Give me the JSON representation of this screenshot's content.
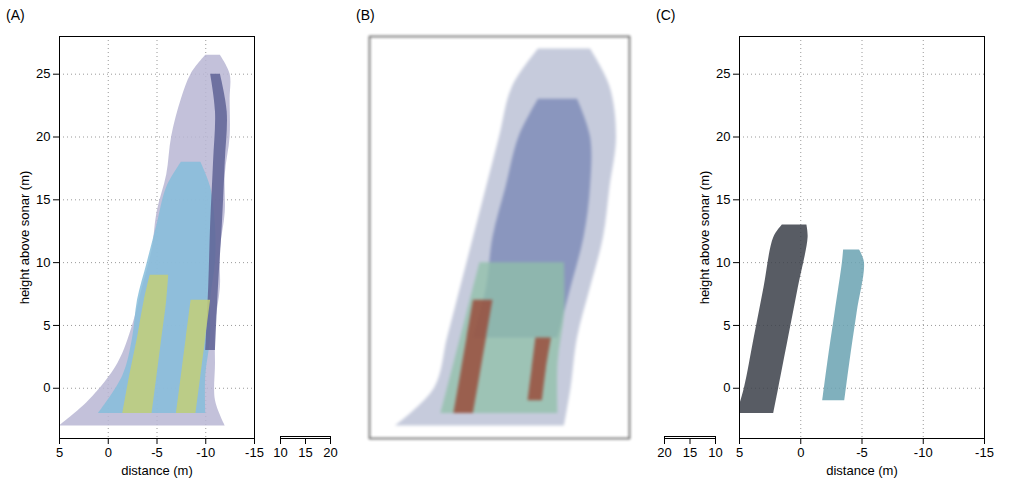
{
  "chart_data": [
    {
      "type": "area",
      "title": "(A)",
      "x_label": "distance (m)",
      "y_label": "height above sonar (m)",
      "xlim": [
        5,
        -15
      ],
      "xticks": [
        5,
        0,
        -5,
        -10,
        -15
      ],
      "ylim": [
        -4,
        28
      ],
      "yticks": [
        0,
        5,
        10,
        15,
        20,
        25
      ],
      "zlim": [
        10,
        20
      ],
      "zticks": [
        10,
        15,
        20
      ],
      "grid": true,
      "series": [
        {
          "color": "#b9b6d3",
          "y": [
            -3,
            -1,
            2,
            5,
            8,
            11,
            14,
            17,
            20,
            23,
            25,
            26.5
          ],
          "x1": [
            5,
            2,
            -1,
            -2.5,
            -3.5,
            -4.5,
            -5,
            -6,
            -6.5,
            -7.5,
            -8.5,
            -10
          ],
          "x2": [
            -12,
            -11,
            -11,
            -11,
            -11.5,
            -11.5,
            -12,
            -12,
            -12.5,
            -12.5,
            -12.5,
            -11.5
          ]
        },
        {
          "color": "#86bddb",
          "y": [
            -2,
            1,
            4,
            7,
            10,
            13,
            16,
            18
          ],
          "x1": [
            1,
            -1.5,
            -2.5,
            -3,
            -4,
            -5,
            -6,
            -7.5
          ],
          "x2": [
            -10,
            -10,
            -10.5,
            -10.5,
            -11,
            -11,
            -10.5,
            -9.5
          ]
        },
        {
          "color": "#5f6395",
          "y": [
            3,
            8,
            13,
            18,
            22,
            25
          ],
          "x1": [
            -10,
            -10.3,
            -10.5,
            -10.8,
            -11,
            -10.5
          ],
          "x2": [
            -11,
            -11.3,
            -11.7,
            -12,
            -12.2,
            -11.5
          ]
        },
        {
          "color": "#c3cf78",
          "y": [
            -2,
            1,
            4,
            7,
            9
          ],
          "x1": [
            -1.5,
            -2.2,
            -3,
            -3.7,
            -4.3
          ],
          "x2": [
            -4.5,
            -5,
            -5.5,
            -6,
            -6.2
          ]
        },
        {
          "color": "#c3cf78",
          "y": [
            -2,
            1,
            4,
            7
          ],
          "x1": [
            -7,
            -7.5,
            -8,
            -8.5
          ],
          "x2": [
            -9,
            -9.5,
            -10,
            -10.5
          ]
        }
      ]
    },
    {
      "type": "area",
      "title": "(B)",
      "tick_labels": false,
      "grid": false,
      "xlim": [
        5,
        -15
      ],
      "ylim": [
        -4,
        28
      ],
      "series": [
        {
          "color": "#b3b9d0",
          "y": [
            -3,
            0,
            4,
            8,
            12,
            16,
            20,
            24,
            27
          ],
          "x1": [
            3,
            0,
            -1,
            -2,
            -3,
            -4,
            -5,
            -6,
            -8
          ],
          "x2": [
            -10,
            -10.5,
            -11,
            -12,
            -13,
            -13.5,
            -14,
            -13.5,
            -12
          ]
        },
        {
          "color": "#7584b4",
          "y": [
            4,
            8,
            12,
            16,
            20,
            23
          ],
          "x1": [
            -3,
            -4,
            -4.5,
            -5.5,
            -6.5,
            -8
          ],
          "x2": [
            -9.5,
            -10.5,
            -11.5,
            -12,
            -12,
            -11
          ]
        },
        {
          "color": "#8fc0a8",
          "y": [
            -2,
            2,
            6,
            10
          ],
          "x1": [
            -0.5,
            -1.5,
            -2.5,
            -3.5
          ],
          "x2": [
            -9.5,
            -9.5,
            -10,
            -10
          ]
        },
        {
          "color": "#9a3d2c",
          "y": [
            -2,
            1,
            4,
            7
          ],
          "x1": [
            -1.5,
            -2,
            -2.5,
            -3
          ],
          "x2": [
            -3,
            -3.5,
            -4,
            -4.5
          ]
        },
        {
          "color": "#9a3d2c",
          "y": [
            -1,
            1.5,
            4
          ],
          "x1": [
            -7.2,
            -7.5,
            -7.8
          ],
          "x2": [
            -8.3,
            -8.6,
            -9
          ]
        }
      ]
    },
    {
      "type": "area",
      "title": "(C)",
      "x_label": "distance (m)",
      "y_label": "height above sonar (m)",
      "xlim": [
        5,
        -15
      ],
      "xticks": [
        5,
        0,
        -5,
        -10,
        -15
      ],
      "ylim": [
        -4,
        28
      ],
      "yticks": [
        0,
        5,
        10,
        15,
        20,
        25
      ],
      "zlim": [
        20,
        10
      ],
      "zticks": [
        20,
        15,
        10
      ],
      "grid": true,
      "series": [
        {
          "color": "#3b4049",
          "y": [
            -2,
            0,
            4,
            8,
            12,
            13
          ],
          "x1": [
            5.2,
            4.6,
            3.8,
            3,
            2.2,
            1.5
          ],
          "x2": [
            2.2,
            1.8,
            1,
            0.2,
            -0.6,
            -0.5
          ]
        },
        {
          "color": "#6aa2b2",
          "y": [
            -1,
            2,
            6,
            10,
            11
          ],
          "x1": [
            -1.8,
            -2.2,
            -2.8,
            -3.4,
            -3.5
          ],
          "x2": [
            -3.6,
            -4,
            -4.6,
            -5.2,
            -4.8
          ]
        }
      ]
    }
  ]
}
